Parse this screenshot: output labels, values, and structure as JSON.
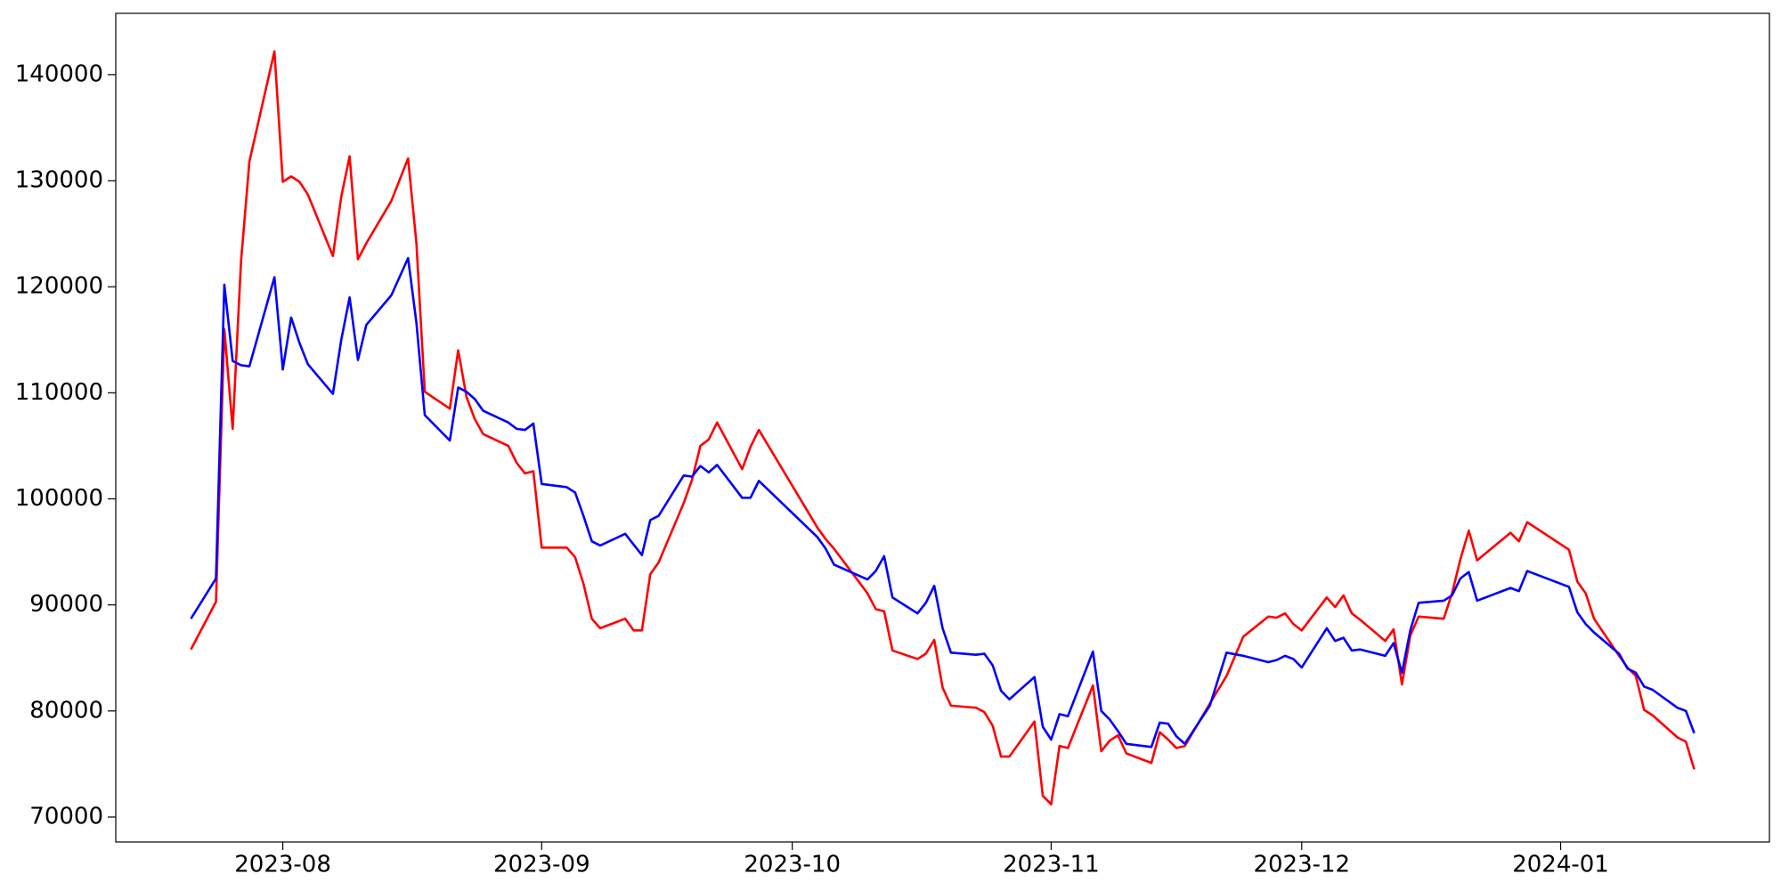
{
  "chart_data": {
    "type": "line",
    "x": [
      "2023-07-21",
      "2023-07-24",
      "2023-07-25",
      "2023-07-26",
      "2023-07-27",
      "2023-07-28",
      "2023-07-31",
      "2023-08-01",
      "2023-08-02",
      "2023-08-03",
      "2023-08-04",
      "2023-08-07",
      "2023-08-08",
      "2023-08-09",
      "2023-08-10",
      "2023-08-11",
      "2023-08-14",
      "2023-08-16",
      "2023-08-17",
      "2023-08-18",
      "2023-08-21",
      "2023-08-22",
      "2023-08-23",
      "2023-08-24",
      "2023-08-25",
      "2023-08-28",
      "2023-08-29",
      "2023-08-30",
      "2023-08-31",
      "2023-09-01",
      "2023-09-04",
      "2023-09-05",
      "2023-09-06",
      "2023-09-07",
      "2023-09-08",
      "2023-09-11",
      "2023-09-12",
      "2023-09-13",
      "2023-09-14",
      "2023-09-15",
      "2023-09-18",
      "2023-09-19",
      "2023-09-20",
      "2023-09-21",
      "2023-09-22",
      "2023-09-25",
      "2023-09-26",
      "2023-09-27",
      "2023-10-04",
      "2023-10-05",
      "2023-10-06",
      "2023-10-10",
      "2023-10-11",
      "2023-10-12",
      "2023-10-13",
      "2023-10-16",
      "2023-10-17",
      "2023-10-18",
      "2023-10-19",
      "2023-10-20",
      "2023-10-23",
      "2023-10-24",
      "2023-10-25",
      "2023-10-26",
      "2023-10-27",
      "2023-10-30",
      "2023-10-31",
      "2023-11-01",
      "2023-11-02",
      "2023-11-03",
      "2023-11-06",
      "2023-11-07",
      "2023-11-08",
      "2023-11-09",
      "2023-11-10",
      "2023-11-13",
      "2023-11-14",
      "2023-11-15",
      "2023-11-16",
      "2023-11-17",
      "2023-11-20",
      "2023-11-22",
      "2023-11-24",
      "2023-11-27",
      "2023-11-28",
      "2023-11-29",
      "2023-11-30",
      "2023-12-01",
      "2023-12-04",
      "2023-12-05",
      "2023-12-06",
      "2023-12-07",
      "2023-12-08",
      "2023-12-11",
      "2023-12-12",
      "2023-12-13",
      "2023-12-14",
      "2023-12-15",
      "2023-12-18",
      "2023-12-19",
      "2023-12-20",
      "2023-12-21",
      "2023-12-22",
      "2023-12-26",
      "2023-12-27",
      "2023-12-28",
      "2024-01-02",
      "2024-01-03",
      "2024-01-04",
      "2024-01-05",
      "2024-01-08",
      "2024-01-09",
      "2024-01-10",
      "2024-01-11",
      "2024-01-12",
      "2024-01-15",
      "2024-01-16",
      "2024-01-17"
    ],
    "series": [
      {
        "color": "#ff0000",
        "values": [
          85800,
          90300,
          116000,
          106600,
          122400,
          131800,
          142200,
          129900,
          130400,
          129900,
          128700,
          122900,
          128500,
          132300,
          122600,
          124100,
          128100,
          132100,
          124100,
          110100,
          108500,
          114000,
          109600,
          107500,
          106100,
          105000,
          103400,
          102400,
          102600,
          95400,
          95400,
          94500,
          92000,
          88700,
          87800,
          88700,
          87600,
          87600,
          92900,
          94000,
          99600,
          101800,
          105000,
          105600,
          107200,
          102800,
          104900,
          106500,
          97300,
          96200,
          95300,
          91100,
          89600,
          89400,
          85700,
          84900,
          85400,
          86700,
          82200,
          80500,
          80300,
          79900,
          78600,
          75700,
          75700,
          79000,
          72000,
          71200,
          76700,
          76500,
          82400,
          76200,
          77200,
          77700,
          76000,
          75100,
          78000,
          77300,
          76500,
          76700,
          80700,
          83300,
          87000,
          88900,
          88800,
          89200,
          88200,
          87600,
          90700,
          89800,
          90900,
          89200,
          88600,
          86600,
          87700,
          82500,
          87100,
          88900,
          88700,
          91100,
          94300,
          97000,
          94200,
          96800,
          96000,
          97800,
          95200,
          92200,
          91100,
          88700,
          85200,
          84100,
          83300,
          80100,
          79600,
          77500,
          77100,
          74500
        ]
      },
      {
        "color": "#0000ff",
        "values": [
          88700,
          92500,
          120200,
          113000,
          112600,
          112500,
          120900,
          112200,
          117100,
          114700,
          112700,
          109900,
          115000,
          119000,
          113100,
          116400,
          119200,
          122700,
          116600,
          107900,
          105500,
          110500,
          110100,
          109400,
          108300,
          107200,
          106600,
          106500,
          107100,
          101400,
          101100,
          100600,
          98400,
          96000,
          95600,
          96700,
          95700,
          94700,
          98000,
          98400,
          102200,
          102100,
          103100,
          102500,
          103200,
          100100,
          100100,
          101700,
          96400,
          95300,
          93800,
          92400,
          93200,
          94600,
          90700,
          89200,
          90200,
          91800,
          87800,
          85500,
          85300,
          85400,
          84300,
          81900,
          81100,
          83200,
          78500,
          77300,
          79700,
          79500,
          85600,
          80000,
          79200,
          78100,
          76900,
          76600,
          78900,
          78800,
          77600,
          76900,
          80500,
          85500,
          85200,
          84600,
          84800,
          85200,
          84900,
          84100,
          87800,
          86600,
          86900,
          85700,
          85800,
          85200,
          86400,
          83600,
          87600,
          90200,
          90400,
          90900,
          92500,
          93100,
          90400,
          91600,
          91300,
          93200,
          91700,
          89300,
          88200,
          87400,
          85400,
          84000,
          83600,
          82300,
          82000,
          80300,
          80000,
          77900
        ]
      }
    ],
    "xlim": [
      "2023-07-12",
      "2024-01-26"
    ],
    "xticks": [
      {
        "value": "2023-08-01",
        "label": "2023-08"
      },
      {
        "value": "2023-09-01",
        "label": "2023-09"
      },
      {
        "value": "2023-10-01",
        "label": "2023-10"
      },
      {
        "value": "2023-11-01",
        "label": "2023-11"
      },
      {
        "value": "2023-12-01",
        "label": "2023-12"
      },
      {
        "value": "2024-01-01",
        "label": "2024-01"
      }
    ],
    "ylim": [
      67650,
      145780
    ],
    "yticks": [
      70000,
      80000,
      90000,
      100000,
      110000,
      120000,
      130000,
      140000
    ],
    "grid": false
  }
}
